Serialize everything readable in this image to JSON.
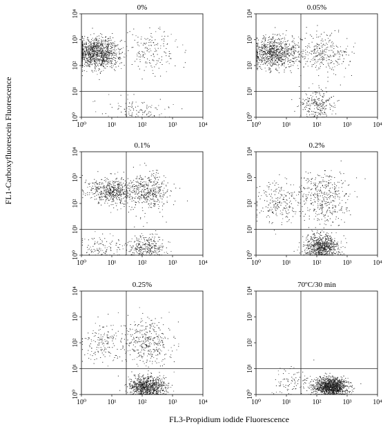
{
  "figure": {
    "ylabel": "FL1-Carboxyfluorescein  Fluorescence",
    "xlabel": "FL3-Propidium iodide  Fluorescence"
  },
  "chart_data": [
    {
      "type": "scatter",
      "title": "0%",
      "x_scale": "log",
      "y_scale": "log",
      "xlim": [
        1,
        10000
      ],
      "ylim": [
        1,
        10000
      ],
      "x_ticks": [
        "10⁰",
        "10¹",
        "10²",
        "10³",
        "10⁴"
      ],
      "y_ticks": [
        "10⁰",
        "10¹",
        "10²",
        "10³",
        "10⁴"
      ],
      "quadrant_gate": {
        "x": 30,
        "y": 10
      },
      "clusters": [
        {
          "x_center": 3,
          "y_center": 300,
          "spread_decades": [
            0.38,
            0.3
          ],
          "fraction": 0.8
        },
        {
          "x_center": 200,
          "y_center": 400,
          "spread_decades": [
            0.45,
            0.45
          ],
          "fraction": 0.12
        },
        {
          "x_center": 60,
          "y_center": 2,
          "spread_decades": [
            0.5,
            0.25
          ],
          "fraction": 0.08
        }
      ]
    },
    {
      "type": "scatter",
      "title": "0.05%",
      "x_scale": "log",
      "y_scale": "log",
      "xlim": [
        1,
        10000
      ],
      "ylim": [
        1,
        10000
      ],
      "x_ticks": [
        "10⁰",
        "10¹",
        "10²",
        "10³",
        "10⁴"
      ],
      "y_ticks": [
        "10⁰",
        "10¹",
        "10²",
        "10³",
        "10⁴"
      ],
      "quadrant_gate": {
        "x": 30,
        "y": 10
      },
      "clusters": [
        {
          "x_center": 4,
          "y_center": 300,
          "spread_decades": [
            0.38,
            0.3
          ],
          "fraction": 0.6
        },
        {
          "x_center": 150,
          "y_center": 300,
          "spread_decades": [
            0.45,
            0.4
          ],
          "fraction": 0.22
        },
        {
          "x_center": 100,
          "y_center": 3,
          "spread_decades": [
            0.3,
            0.3
          ],
          "fraction": 0.18
        }
      ]
    },
    {
      "type": "scatter",
      "title": "0.1%",
      "x_scale": "log",
      "y_scale": "log",
      "xlim": [
        1,
        10000
      ],
      "ylim": [
        1,
        10000
      ],
      "x_ticks": [
        "10⁰",
        "10¹",
        "10²",
        "10³",
        "10⁴"
      ],
      "y_ticks": [
        "10⁰",
        "10¹",
        "10²",
        "10³",
        "10⁴"
      ],
      "quadrant_gate": {
        "x": 30,
        "y": 10
      },
      "clusters": [
        {
          "x_center": 10,
          "y_center": 300,
          "spread_decades": [
            0.4,
            0.25
          ],
          "fraction": 0.4
        },
        {
          "x_center": 150,
          "y_center": 300,
          "spread_decades": [
            0.35,
            0.35
          ],
          "fraction": 0.3
        },
        {
          "x_center": 120,
          "y_center": 2,
          "spread_decades": [
            0.3,
            0.25
          ],
          "fraction": 0.22
        },
        {
          "x_center": 5,
          "y_center": 2,
          "spread_decades": [
            0.35,
            0.25
          ],
          "fraction": 0.08
        }
      ]
    },
    {
      "type": "scatter",
      "title": "0.2%",
      "x_scale": "log",
      "y_scale": "log",
      "xlim": [
        1,
        10000
      ],
      "ylim": [
        1,
        10000
      ],
      "x_ticks": [
        "10⁰",
        "10¹",
        "10²",
        "10³",
        "10⁴"
      ],
      "y_ticks": [
        "10⁰",
        "10¹",
        "10²",
        "10³",
        "10⁴"
      ],
      "quadrant_gate": {
        "x": 30,
        "y": 10
      },
      "clusters": [
        {
          "x_center": 150,
          "y_center": 2,
          "spread_decades": [
            0.3,
            0.25
          ],
          "fraction": 0.55
        },
        {
          "x_center": 150,
          "y_center": 150,
          "spread_decades": [
            0.45,
            0.5
          ],
          "fraction": 0.3
        },
        {
          "x_center": 5,
          "y_center": 100,
          "spread_decades": [
            0.4,
            0.45
          ],
          "fraction": 0.15
        }
      ]
    },
    {
      "type": "scatter",
      "title": "0.25%",
      "x_scale": "log",
      "y_scale": "log",
      "xlim": [
        1,
        10000
      ],
      "ylim": [
        1,
        10000
      ],
      "x_ticks": [
        "10⁰",
        "10¹",
        "10²",
        "10³",
        "10⁴"
      ],
      "y_ticks": [
        "10⁰",
        "10¹",
        "10²",
        "10³",
        "10⁴"
      ],
      "quadrant_gate": {
        "x": 30,
        "y": 10
      },
      "clusters": [
        {
          "x_center": 150,
          "y_center": 2,
          "spread_decades": [
            0.3,
            0.2
          ],
          "fraction": 0.62
        },
        {
          "x_center": 150,
          "y_center": 100,
          "spread_decades": [
            0.4,
            0.45
          ],
          "fraction": 0.26
        },
        {
          "x_center": 5,
          "y_center": 100,
          "spread_decades": [
            0.35,
            0.4
          ],
          "fraction": 0.12
        }
      ]
    },
    {
      "type": "scatter",
      "title": "70ºC/30 min",
      "x_scale": "log",
      "y_scale": "log",
      "xlim": [
        1,
        10000
      ],
      "ylim": [
        1,
        10000
      ],
      "x_ticks": [
        "10⁰",
        "10¹",
        "10²",
        "10³",
        "10⁴"
      ],
      "y_ticks": [
        "10⁰",
        "10¹",
        "10²",
        "10³",
        "10⁴"
      ],
      "quadrant_gate": {
        "x": 30,
        "y": 10
      },
      "clusters": [
        {
          "x_center": 300,
          "y_center": 2,
          "spread_decades": [
            0.28,
            0.18
          ],
          "fraction": 0.93
        },
        {
          "x_center": 20,
          "y_center": 3,
          "spread_decades": [
            0.4,
            0.3
          ],
          "fraction": 0.07
        }
      ]
    }
  ]
}
